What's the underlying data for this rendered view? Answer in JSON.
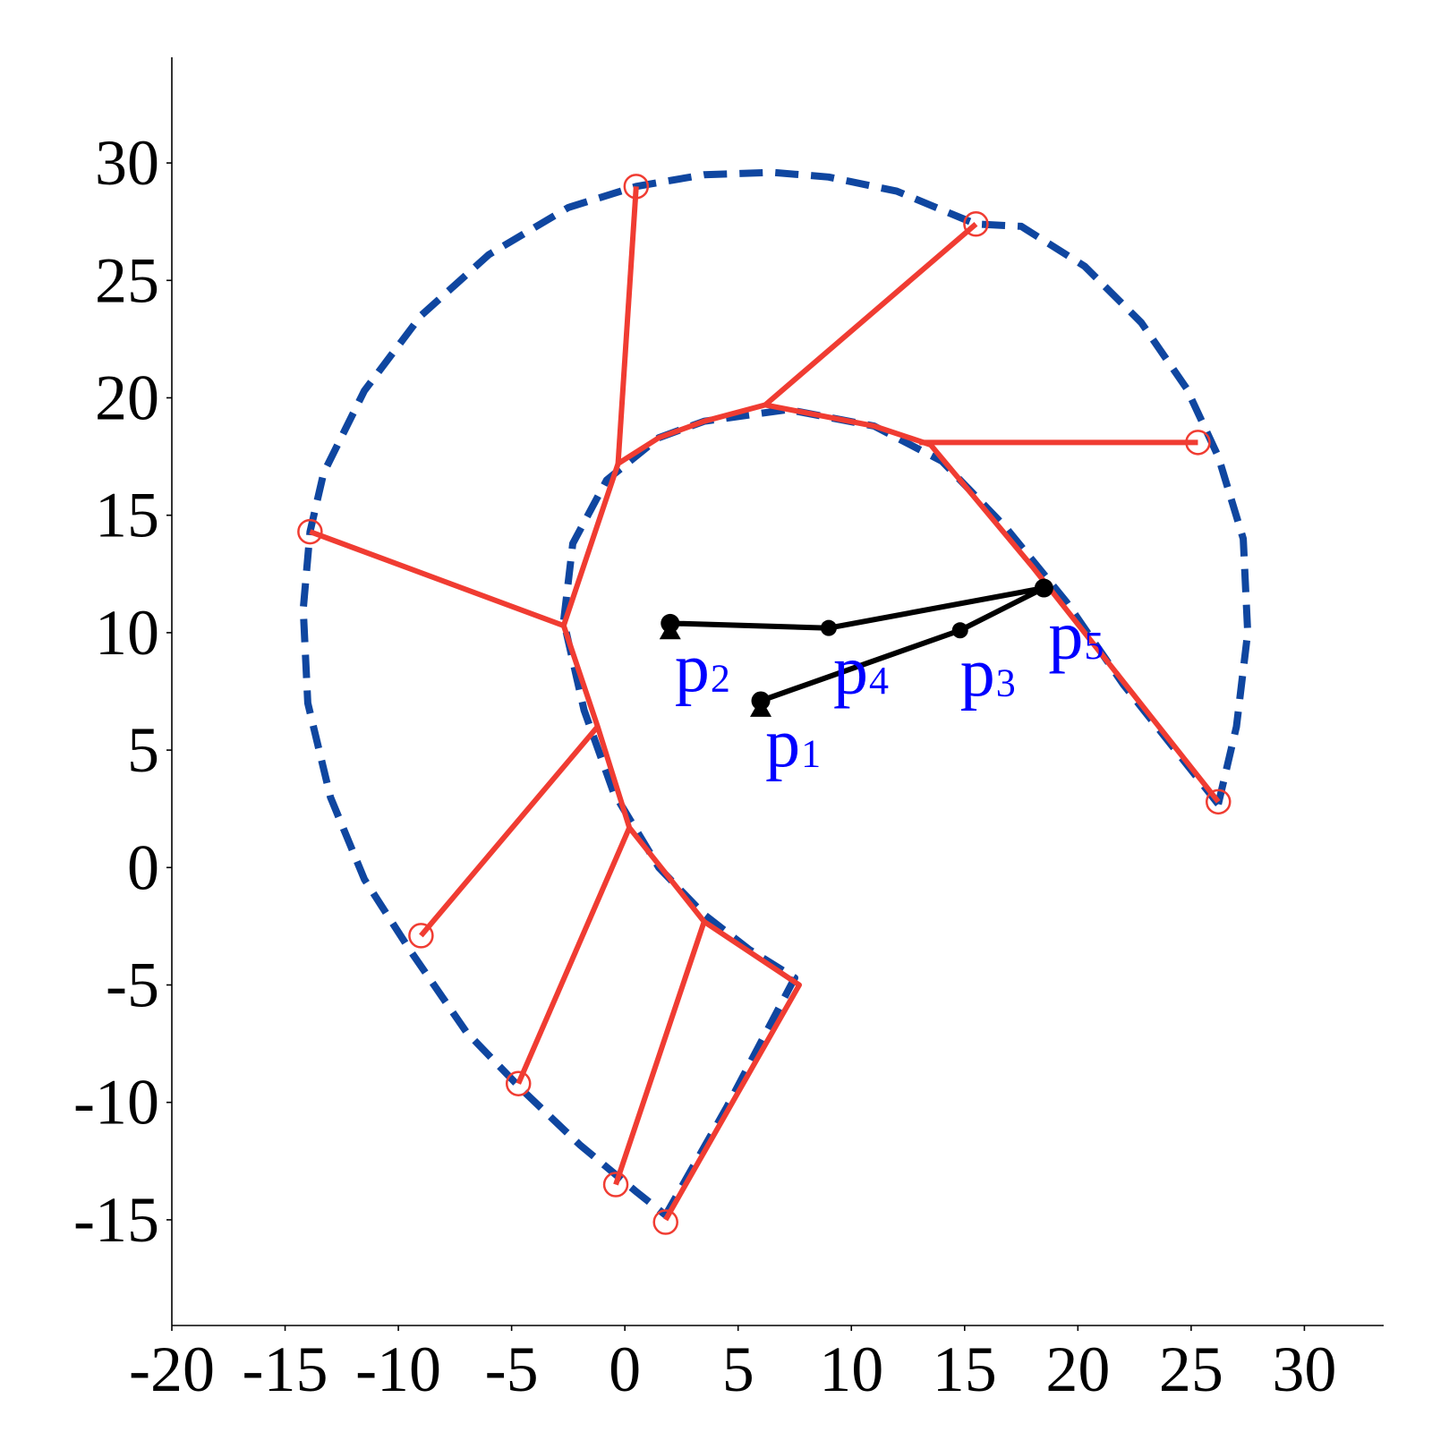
{
  "chart_data": {
    "type": "scatter",
    "title": "",
    "xlabel": "",
    "ylabel": "",
    "xlim": [
      -20,
      33.5
    ],
    "ylim": [
      -19.5,
      34.5
    ],
    "x_ticks": [
      -20,
      -15,
      -10,
      -5,
      0,
      5,
      10,
      15,
      20,
      25,
      30
    ],
    "y_ticks": [
      -15,
      -10,
      -5,
      0,
      5,
      10,
      15,
      20,
      25,
      30
    ],
    "x_tick_labels": [
      "-20",
      "-15",
      "-10",
      "-5",
      "0",
      "5",
      "10",
      "15",
      "20",
      "25",
      "30"
    ],
    "y_tick_labels": [
      "-15",
      "-10",
      "-5",
      "0",
      "5",
      "10",
      "15",
      "20",
      "25",
      "30"
    ],
    "grid": false,
    "colors": {
      "red_lines": "#f03c32",
      "blue_dashed": "#0f46a0",
      "black_path": "#000000",
      "labels": "#0000ff"
    },
    "outer_boundary_dashed": {
      "points": [
        [
          26.2,
          2.7
        ],
        [
          27.0,
          6.0
        ],
        [
          27.5,
          10.0
        ],
        [
          27.3,
          14.0
        ],
        [
          26.2,
          17.5
        ],
        [
          24.8,
          20.4
        ],
        [
          22.8,
          23.2
        ],
        [
          20.3,
          25.6
        ],
        [
          17.5,
          27.3
        ],
        [
          15.5,
          27.4
        ],
        [
          12.0,
          28.8
        ],
        [
          9.0,
          29.4
        ],
        [
          6.5,
          29.6
        ],
        [
          3.5,
          29.5
        ],
        [
          0.5,
          29.0
        ],
        [
          -2.5,
          28.1
        ],
        [
          -6.0,
          26.1
        ],
        [
          -9.0,
          23.5
        ],
        [
          -11.5,
          20.3
        ],
        [
          -13.3,
          16.8
        ],
        [
          -13.9,
          14.3
        ],
        [
          -14.2,
          11.0
        ],
        [
          -14.0,
          7.0
        ],
        [
          -13.0,
          3.0
        ],
        [
          -11.5,
          -0.5
        ],
        [
          -9.5,
          -3.5
        ],
        [
          -7.0,
          -7.0
        ],
        [
          -4.5,
          -9.5
        ],
        [
          -2.0,
          -11.8
        ],
        [
          0.5,
          -13.8
        ],
        [
          1.8,
          -14.8
        ]
      ]
    },
    "inner_boundary_dashed": {
      "points": [
        [
          26.2,
          2.7
        ],
        [
          22.0,
          7.8
        ],
        [
          19.5,
          11.3
        ],
        [
          16.8,
          14.5
        ],
        [
          14.0,
          17.3
        ],
        [
          11.0,
          18.8
        ],
        [
          7.2,
          19.5
        ],
        [
          3.5,
          19.0
        ],
        [
          1.5,
          18.3
        ],
        [
          -0.8,
          16.5
        ],
        [
          -2.3,
          13.8
        ],
        [
          -2.7,
          10.5
        ],
        [
          -1.8,
          6.7
        ],
        [
          -0.5,
          3.2
        ],
        [
          1.5,
          0.0
        ],
        [
          3.5,
          -2.0
        ],
        [
          5.5,
          -3.5
        ],
        [
          7.5,
          -4.7
        ],
        [
          4.5,
          -10.2
        ],
        [
          1.8,
          -14.8
        ]
      ]
    },
    "red_polyline": [
      [
        26.2,
        2.8
      ],
      [
        18.0,
        12.8
      ],
      [
        13.5,
        18.0
      ],
      [
        11.0,
        18.8
      ],
      [
        6.2,
        19.7
      ],
      [
        3.5,
        19.0
      ],
      [
        1.5,
        18.3
      ],
      [
        -0.3,
        17.2
      ],
      [
        -2.7,
        10.3
      ],
      [
        -1.2,
        6.0
      ],
      [
        0.2,
        1.7
      ],
      [
        3.5,
        -2.3
      ],
      [
        7.7,
        -5.0
      ],
      [
        1.8,
        -15.0
      ]
    ],
    "red_spokes": [
      {
        "from": [
          13.0,
          18.1
        ],
        "to": [
          25.3,
          18.1
        ]
      },
      {
        "from": [
          6.2,
          19.7
        ],
        "to": [
          15.5,
          27.4
        ]
      },
      {
        "from": [
          -0.3,
          17.2
        ],
        "to": [
          0.5,
          29.0
        ]
      },
      {
        "from": [
          -2.7,
          10.3
        ],
        "to": [
          -13.9,
          14.3
        ]
      },
      {
        "from": [
          -1.2,
          6.0
        ],
        "to": [
          -9.0,
          -2.9
        ]
      },
      {
        "from": [
          0.2,
          1.7
        ],
        "to": [
          -4.7,
          -9.2
        ]
      },
      {
        "from": [
          3.5,
          -2.3
        ],
        "to": [
          -0.4,
          -13.5
        ]
      }
    ],
    "red_markers": [
      [
        0.5,
        29.0
      ],
      [
        15.5,
        27.4
      ],
      [
        25.3,
        18.1
      ],
      [
        26.2,
        2.8
      ],
      [
        -13.9,
        14.3
      ],
      [
        -9.0,
        -2.9
      ],
      [
        -4.7,
        -9.2
      ],
      [
        -0.4,
        -13.5
      ],
      [
        1.8,
        -15.1
      ]
    ],
    "path_points": [
      {
        "name": "p1",
        "x": 6.0,
        "y": 7.1
      },
      {
        "name": "p3",
        "x": 14.8,
        "y": 10.1
      },
      {
        "name": "p5",
        "x": 18.5,
        "y": 11.9
      },
      {
        "name": "p4",
        "x": 9.0,
        "y": 10.2
      },
      {
        "name": "p2",
        "x": 2.0,
        "y": 10.4
      }
    ],
    "triangle_markers": [
      [
        6.0,
        6.8
      ],
      [
        2.0,
        10.1
      ]
    ],
    "point_labels": [
      {
        "main": "p",
        "sub": "1",
        "x": 6.2,
        "y": 4.3
      },
      {
        "main": "p",
        "sub": "2",
        "x": 2.2,
        "y": 7.5
      },
      {
        "main": "p",
        "sub": "3",
        "x": 14.8,
        "y": 7.3
      },
      {
        "main": "p",
        "sub": "4",
        "x": 9.2,
        "y": 7.4
      },
      {
        "main": "p",
        "sub": "5",
        "x": 18.7,
        "y": 8.9
      }
    ]
  }
}
